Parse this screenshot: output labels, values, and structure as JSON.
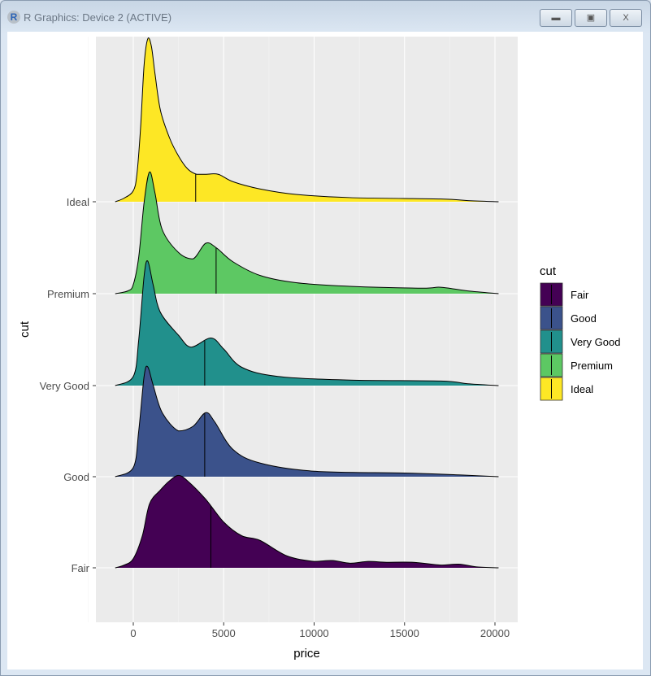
{
  "window": {
    "title": "R Graphics: Device 2 (ACTIVE)",
    "buttons": [
      "minimize",
      "maximize",
      "close"
    ]
  },
  "chart_data": {
    "type": "area",
    "subtype": "ridgeline density with median lines",
    "xlabel": "price",
    "ylabel": "cut",
    "xlim": [
      -2000,
      21000
    ],
    "xticks": [
      0,
      5000,
      10000,
      15000,
      20000
    ],
    "xtick_labels": [
      "0",
      "5000",
      "10000",
      "15000",
      "20000"
    ],
    "categories": [
      "Fair",
      "Good",
      "Very Good",
      "Premium",
      "Ideal"
    ],
    "grid": true,
    "legend": {
      "title": "cut",
      "placement": "right",
      "entries": [
        "Fair",
        "Good",
        "Very Good",
        "Premium",
        "Ideal"
      ]
    },
    "colors": {
      "Fair": "#440154",
      "Good": "#3B528B",
      "Very Good": "#21908C",
      "Premium": "#5DC863",
      "Ideal": "#FDE725"
    },
    "series": [
      {
        "name": "Ideal",
        "median": 3450,
        "density": [
          [
            -1000,
            0
          ],
          [
            -500,
            0.04
          ],
          [
            0,
            0.12
          ],
          [
            200,
            0.3
          ],
          [
            400,
            0.8
          ],
          [
            600,
            1.5
          ],
          [
            800,
            1.78
          ],
          [
            1000,
            1.7
          ],
          [
            1200,
            1.4
          ],
          [
            1500,
            1.0
          ],
          [
            2000,
            0.7
          ],
          [
            2500,
            0.5
          ],
          [
            3000,
            0.36
          ],
          [
            3500,
            0.3
          ],
          [
            4000,
            0.3
          ],
          [
            4700,
            0.3
          ],
          [
            5500,
            0.22
          ],
          [
            7000,
            0.14
          ],
          [
            9000,
            0.08
          ],
          [
            12000,
            0.045
          ],
          [
            17000,
            0.03
          ],
          [
            18500,
            0.012
          ],
          [
            20200,
            0
          ]
        ]
      },
      {
        "name": "Premium",
        "median": 4580,
        "density": [
          [
            -1000,
            0
          ],
          [
            -300,
            0.03
          ],
          [
            0,
            0.1
          ],
          [
            300,
            0.4
          ],
          [
            600,
            1.0
          ],
          [
            900,
            1.33
          ],
          [
            1200,
            1.1
          ],
          [
            1600,
            0.7
          ],
          [
            2500,
            0.45
          ],
          [
            3300,
            0.38
          ],
          [
            4000,
            0.55
          ],
          [
            4600,
            0.5
          ],
          [
            5500,
            0.35
          ],
          [
            7000,
            0.2
          ],
          [
            9000,
            0.12
          ],
          [
            12000,
            0.08
          ],
          [
            16000,
            0.06
          ],
          [
            17000,
            0.07
          ],
          [
            18500,
            0.03
          ],
          [
            20200,
            0
          ]
        ]
      },
      {
        "name": "Very Good",
        "median": 3950,
        "density": [
          [
            -1000,
            0
          ],
          [
            0,
            0.1
          ],
          [
            300,
            0.5
          ],
          [
            600,
            1.2
          ],
          [
            800,
            1.36
          ],
          [
            1100,
            1.1
          ],
          [
            1500,
            0.8
          ],
          [
            2500,
            0.55
          ],
          [
            3200,
            0.42
          ],
          [
            4300,
            0.52
          ],
          [
            5000,
            0.4
          ],
          [
            6000,
            0.2
          ],
          [
            8000,
            0.1
          ],
          [
            12000,
            0.06
          ],
          [
            17000,
            0.05
          ],
          [
            18500,
            0.02
          ],
          [
            20200,
            0
          ]
        ]
      },
      {
        "name": "Good",
        "median": 3950,
        "density": [
          [
            -1000,
            0
          ],
          [
            0,
            0.1
          ],
          [
            300,
            0.5
          ],
          [
            600,
            1.1
          ],
          [
            800,
            1.2
          ],
          [
            1100,
            1.0
          ],
          [
            1600,
            0.7
          ],
          [
            2500,
            0.5
          ],
          [
            3300,
            0.55
          ],
          [
            4000,
            0.7
          ],
          [
            4500,
            0.6
          ],
          [
            5500,
            0.3
          ],
          [
            7000,
            0.15
          ],
          [
            10000,
            0.06
          ],
          [
            15000,
            0.04
          ],
          [
            18000,
            0.02
          ],
          [
            20200,
            0
          ]
        ]
      },
      {
        "name": "Fair",
        "median": 4290,
        "density": [
          [
            -1000,
            0
          ],
          [
            -500,
            0.03
          ],
          [
            0,
            0.1
          ],
          [
            500,
            0.35
          ],
          [
            900,
            0.7
          ],
          [
            1500,
            0.85
          ],
          [
            2000,
            0.95
          ],
          [
            2500,
            1.01
          ],
          [
            3000,
            0.95
          ],
          [
            4000,
            0.75
          ],
          [
            5000,
            0.5
          ],
          [
            6000,
            0.35
          ],
          [
            7000,
            0.3
          ],
          [
            8500,
            0.13
          ],
          [
            10000,
            0.07
          ],
          [
            11000,
            0.08
          ],
          [
            12000,
            0.05
          ],
          [
            13000,
            0.07
          ],
          [
            14000,
            0.06
          ],
          [
            15500,
            0.06
          ],
          [
            17000,
            0.03
          ],
          [
            18000,
            0.04
          ],
          [
            19000,
            0.01
          ],
          [
            20200,
            0
          ]
        ]
      }
    ]
  }
}
